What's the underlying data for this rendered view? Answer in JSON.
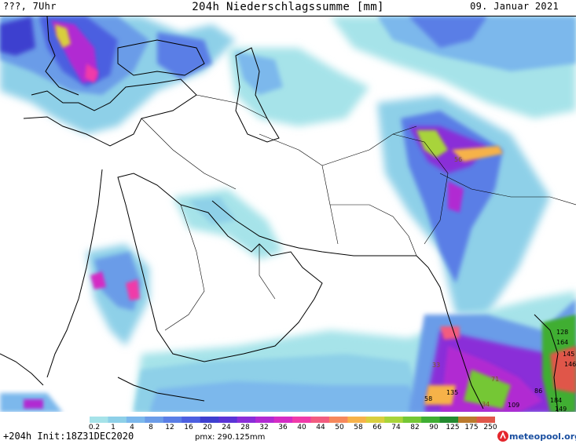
{
  "header": {
    "left": "???, 7Uhr",
    "title": "204h Niederschlagssumme [mm]",
    "right": "09. Januar 2021"
  },
  "footer": {
    "run": "+204h  Init:18Z31DEC2020",
    "pmx": "pmx: 290.125mm"
  },
  "logo": {
    "text": "meteopool.org"
  },
  "legend": {
    "unit": "mm",
    "ticks": [
      "0.2",
      "1",
      "4",
      "8",
      "12",
      "16",
      "20",
      "24",
      "28",
      "32",
      "36",
      "40",
      "44",
      "50",
      "58",
      "66",
      "74",
      "82",
      "90",
      "125",
      "175",
      "250"
    ],
    "colors": [
      "#a6e3e9",
      "#8ed0e8",
      "#7bb8ec",
      "#6b9ce8",
      "#5a7ee6",
      "#4c5fe0",
      "#3e3fcf",
      "#5a34d6",
      "#8a2ed8",
      "#b12ad2",
      "#d42bc4",
      "#f03aa9",
      "#f25c7f",
      "#f6885c",
      "#f6b24a",
      "#d8cf3e",
      "#a8d43a",
      "#74c735",
      "#3fae33",
      "#238a30",
      "#bb7a2d",
      "#e0574a"
    ]
  },
  "map_labels": [
    "135",
    "58",
    "109",
    "184",
    "149",
    "128",
    "164",
    "145",
    "146",
    "86",
    "71",
    "33",
    "34",
    "56"
  ]
}
